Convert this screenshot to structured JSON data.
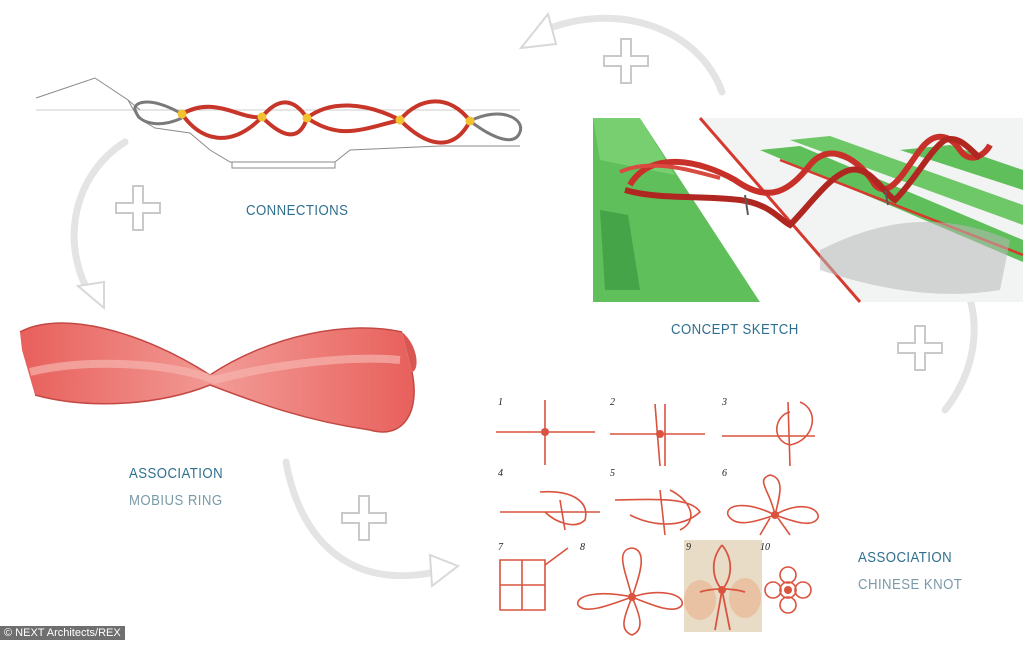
{
  "labels": {
    "connections": "CONNECTIONS",
    "concept_sketch": "CONCEPT SKETCH",
    "association_1": "ASSOCIATION",
    "mobius_ring": "MOBIUS RING",
    "association_2": "ASSOCIATION",
    "chinese_knot": "CHINESE KNOT"
  },
  "knot_steps": [
    "1",
    "2",
    "3",
    "4",
    "5",
    "6",
    "7",
    "8",
    "9",
    "10"
  ],
  "credit": "© NEXT Architects/REX",
  "colors": {
    "label_blue": "#2f6f8e",
    "label_grey": "#7a9aa8",
    "rope_red": "#c8362a",
    "mobius_pink": "#ec7b77",
    "green": "#5fbf5a",
    "knot_node": "#f2c230",
    "arrow_grey": "#e6e6e6"
  },
  "icons": [
    "plus-icon",
    "curved-arrow-icon"
  ]
}
